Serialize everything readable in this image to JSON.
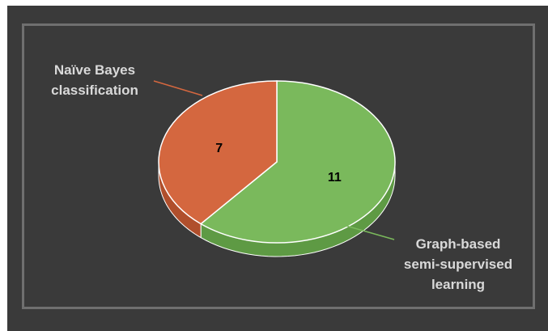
{
  "chart_data": {
    "type": "pie",
    "categories": [
      "Graph-based semi-supervised learning",
      "Naïve Bayes classification"
    ],
    "values": [
      11,
      7
    ],
    "label_lines": [
      [
        "Graph-based",
        "semi-supervised",
        "learning"
      ],
      [
        "Naïve Bayes",
        "classification"
      ]
    ],
    "colors": [
      "#7ab95c",
      "#d4673f"
    ],
    "side_colors": [
      "#5e9a44",
      "#b04f2c"
    ],
    "background": "#3a3a3a",
    "frame_color": "#6f6f6f",
    "label_color": "#d9d9d9",
    "style": "3d",
    "legend": "none"
  }
}
